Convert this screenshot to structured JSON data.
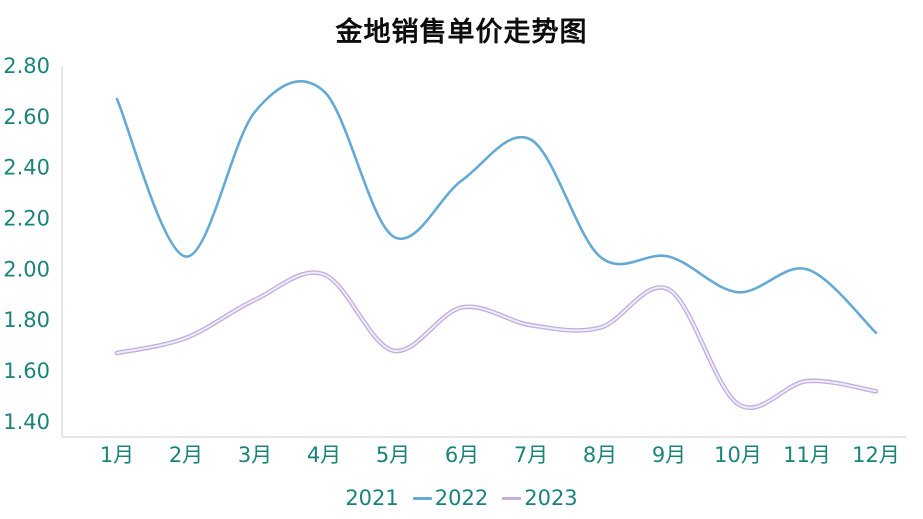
{
  "chart_data": {
    "type": "line",
    "title": "金地销售单价走势图",
    "smooth": true,
    "grid": false,
    "legend_position": "bottom",
    "categories": [
      "1月",
      "2月",
      "3月",
      "4月",
      "5月",
      "6月",
      "7月",
      "8月",
      "9月",
      "10月",
      "11月",
      "12月"
    ],
    "series": [
      {
        "name": "2021",
        "color": null,
        "values": []
      },
      {
        "name": "2022",
        "color": "#65aad6",
        "values": [
          2.67,
          2.05,
          2.62,
          2.7,
          2.13,
          2.35,
          2.51,
          2.05,
          2.05,
          1.91,
          2.0,
          1.75
        ]
      },
      {
        "name": "2023",
        "color": "#bfaede",
        "inner_color": "#efebf8",
        "values": [
          1.67,
          1.73,
          1.88,
          1.98,
          1.68,
          1.85,
          1.78,
          1.77,
          1.92,
          1.47,
          1.56,
          1.52
        ]
      }
    ],
    "y_axis": {
      "min": 1.4,
      "max": 2.8,
      "step": 0.2,
      "tick_labels": [
        "1.40",
        "1.60",
        "1.80",
        "2.00",
        "2.20",
        "2.40",
        "2.60",
        "2.80"
      ]
    },
    "x_axis": {
      "label_color": "#1a837b"
    },
    "colors": {
      "axis_text": "#1a837b",
      "axis_line": "#d6d6d6",
      "title_text": "#0d0d0d",
      "background": "#ffffff"
    }
  }
}
